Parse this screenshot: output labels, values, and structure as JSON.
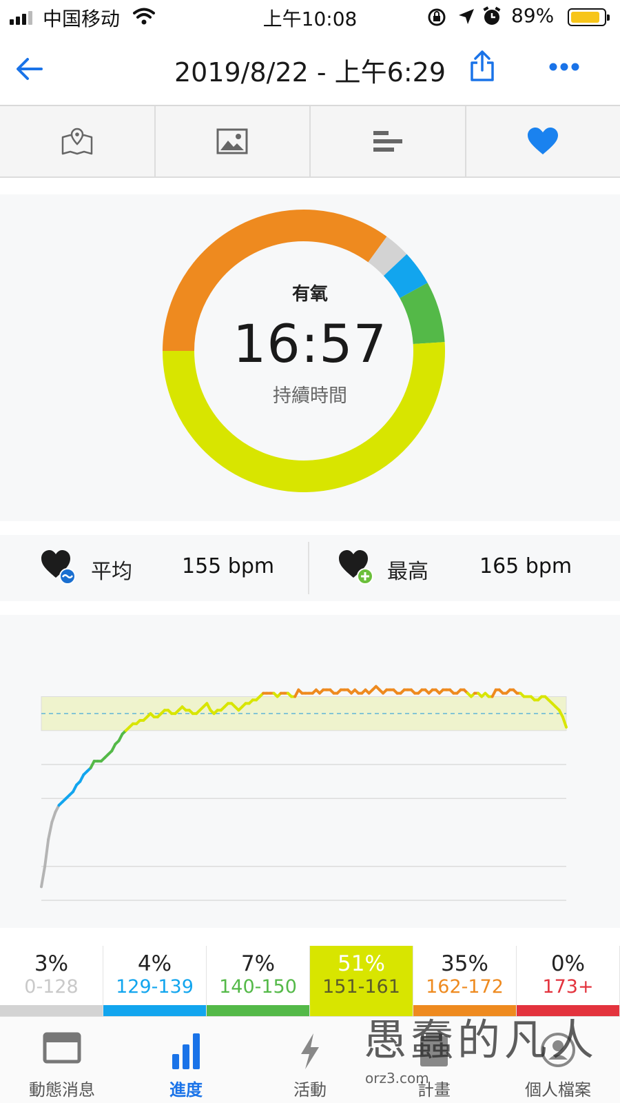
{
  "status_bar": {
    "carrier": "中国移动",
    "time": "上午10:08",
    "battery": "89%",
    "battery_level": 0.89
  },
  "header": {
    "title": "2019/8/22 - 上午6:29"
  },
  "tabs": [
    {
      "icon": "map-icon",
      "active": false
    },
    {
      "icon": "photo-icon",
      "active": false
    },
    {
      "icon": "stats-bars-icon",
      "active": false
    },
    {
      "icon": "heart-icon",
      "active": true
    }
  ],
  "summary": {
    "zone_label": "有氧",
    "duration": "16:57",
    "duration_label": "持續時間"
  },
  "ring_data": [
    {
      "zone": "0-128",
      "percent": 3,
      "color": "#d3d3d3"
    },
    {
      "zone": "129-139",
      "percent": 4,
      "color": "#12a5ee"
    },
    {
      "zone": "140-150",
      "percent": 7,
      "color": "#54b948"
    },
    {
      "zone": "151-161",
      "percent": 51,
      "color": "#d8e500"
    },
    {
      "zone": "162-172",
      "percent": 35,
      "color": "#ee8a1f"
    },
    {
      "zone": "173+",
      "percent": 0,
      "color": "#e3333d"
    }
  ],
  "heart_rate": {
    "average_label": "平均",
    "average_value": "155 bpm",
    "max_label": "最高",
    "max_value": "165 bpm"
  },
  "chart_data": {
    "type": "line",
    "ylim": [
      100,
      180
    ],
    "band": [
      150,
      160
    ],
    "average": 155,
    "gridlines": [
      140,
      130,
      110
    ],
    "values": [
      104,
      110,
      118,
      123,
      126,
      128,
      129,
      130,
      131,
      132,
      134,
      135,
      137,
      138,
      139,
      141,
      141,
      141,
      142,
      143,
      144,
      146,
      147,
      149,
      150,
      151,
      152,
      152,
      153,
      153,
      154,
      155,
      154,
      154,
      155,
      156,
      156,
      155,
      155,
      156,
      157,
      156,
      156,
      155,
      155,
      156,
      157,
      158,
      156,
      155,
      156,
      156,
      157,
      158,
      158,
      157,
      156,
      157,
      158,
      158,
      159,
      159,
      160,
      161,
      161,
      161,
      161,
      160,
      161,
      161,
      161,
      160,
      160,
      162,
      161,
      161,
      161,
      161,
      162,
      161,
      162,
      162,
      162,
      161,
      161,
      162,
      162,
      162,
      161,
      162,
      161,
      161,
      162,
      161,
      162,
      163,
      162,
      161,
      162,
      162,
      162,
      161,
      161,
      162,
      162,
      162,
      161,
      161,
      162,
      162,
      161,
      162,
      162,
      161,
      162,
      162,
      162,
      161,
      161,
      162,
      162,
      161,
      160,
      161,
      161,
      160,
      161,
      160,
      160,
      162,
      162,
      161,
      161,
      162,
      162,
      161,
      161,
      160,
      160,
      160,
      159,
      159,
      160,
      160,
      159,
      158,
      157,
      156,
      154,
      151
    ],
    "zone_colors": [
      {
        "min": 0,
        "max": 128,
        "color": "#b4b4b4"
      },
      {
        "min": 128,
        "max": 139,
        "color": "#12a5ee"
      },
      {
        "min": 139,
        "max": 150,
        "color": "#54b948"
      },
      {
        "min": 150,
        "max": 161,
        "color": "#d8e500"
      },
      {
        "min": 161,
        "max": 173,
        "color": "#ee8a1f"
      },
      {
        "min": 173,
        "max": 250,
        "color": "#e3333d"
      }
    ]
  },
  "zones": [
    {
      "percent": "3%",
      "range": "0-128",
      "range_color": "#c9c9c9",
      "bar_color": "#d3d3d3",
      "highlight": false
    },
    {
      "percent": "4%",
      "range": "129-139",
      "range_color": "#12a5ee",
      "bar_color": "#12a5ee",
      "highlight": false
    },
    {
      "percent": "7%",
      "range": "140-150",
      "range_color": "#54b948",
      "bar_color": "#54b948",
      "highlight": false
    },
    {
      "percent": "51%",
      "range": "151-161",
      "range_color": "#5b5b2a",
      "bar_color": "#d8e500",
      "highlight": true
    },
    {
      "percent": "35%",
      "range": "162-172",
      "range_color": "#ee8a1f",
      "bar_color": "#ee8a1f",
      "highlight": false
    },
    {
      "percent": "0%",
      "range": "173+",
      "range_color": "#e3333d",
      "bar_color": "#e3333d",
      "highlight": false
    }
  ],
  "nav": [
    {
      "label": "動態消息",
      "icon": "newsfeed-icon",
      "active": false
    },
    {
      "label": "進度",
      "icon": "progress-icon",
      "active": true
    },
    {
      "label": "活動",
      "icon": "activity-icon",
      "active": false
    },
    {
      "label": "計畫",
      "icon": "plan-icon",
      "active": false
    },
    {
      "label": "個人檔案",
      "icon": "profile-icon",
      "active": false
    }
  ],
  "watermark": {
    "text": "愚蠢的凡人",
    "url": "orz3.com"
  },
  "colors": {
    "accent": "#1a73e8",
    "heart": "#1a82ef"
  }
}
